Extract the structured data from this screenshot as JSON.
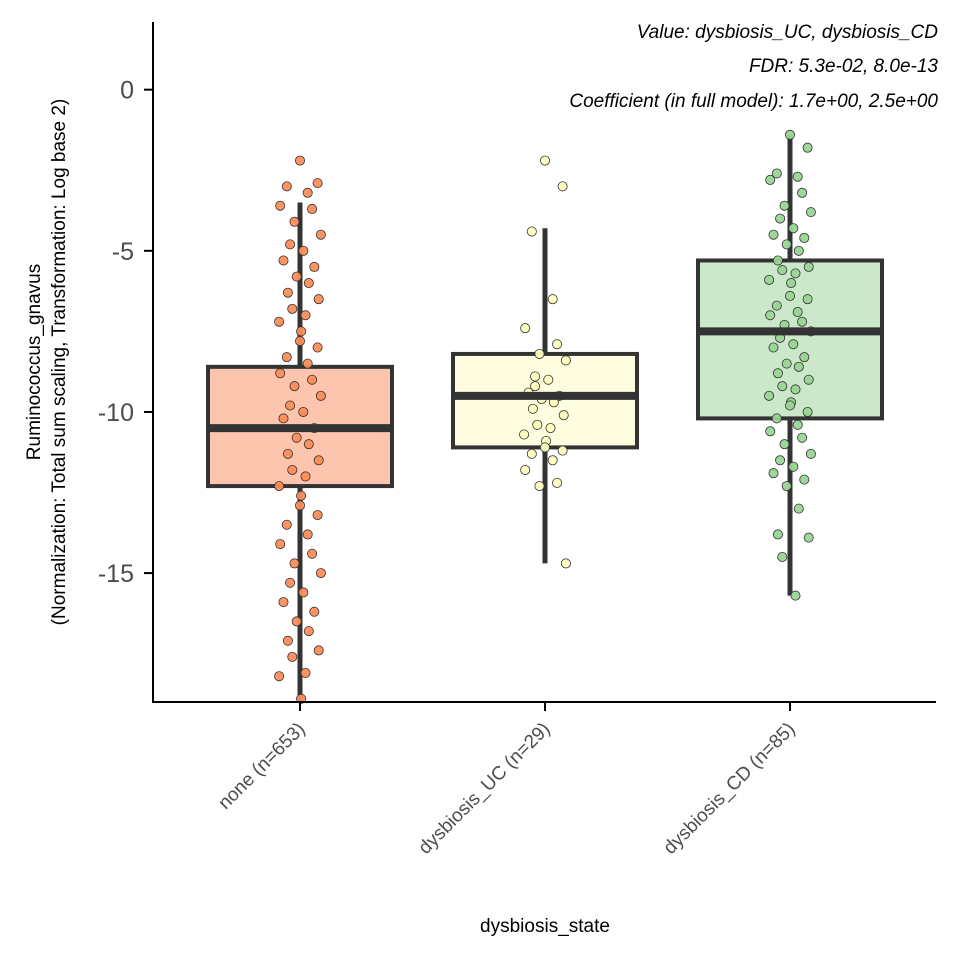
{
  "chart_data": {
    "type": "box",
    "xlabel": "dysbiosis_state",
    "ylabel_line1": "Ruminococcus_gnavus",
    "ylabel_line2": "(Normalization: Total sum scaling, Transformation: Log base 2)",
    "ylim": [
      -19.0,
      2.1
    ],
    "y_ticks": [
      0,
      -5,
      -10,
      -15
    ],
    "y_tick_labels": [
      "0",
      "-5",
      "-10",
      "-15"
    ],
    "grid": false,
    "annotations": [
      "Value: dysbiosis_UC, dysbiosis_CD",
      "FDR: 5.3e-02, 8.0e-13",
      "Coefficient (in full model): 1.7e+00, 2.5e+00"
    ],
    "categories": [
      "none (n=653)",
      "dysbiosis_UC (n=29)",
      "dysbiosis_CD (n=85)"
    ],
    "groups": [
      {
        "n": 653,
        "color": "#fc8d59",
        "box_fill": "#fdc5ad",
        "box": {
          "whisker_low": -19.0,
          "q1": -12.3,
          "median": -10.5,
          "q3": -8.6,
          "whisker_high": -3.5
        },
        "points": [
          -2.2,
          -2.9,
          -3.0,
          -3.2,
          -3.6,
          -3.7,
          -4.1,
          -4.5,
          -4.8,
          -5.0,
          -5.3,
          -5.5,
          -5.8,
          -6.0,
          -6.3,
          -6.5,
          -6.8,
          -7.0,
          -7.2,
          -7.5,
          -7.8,
          -8.0,
          -8.3,
          -8.5,
          -8.8,
          -9.0,
          -9.2,
          -9.5,
          -9.8,
          -10.0,
          -10.2,
          -10.5,
          -10.8,
          -11.0,
          -11.3,
          -11.5,
          -11.8,
          -12.0,
          -12.3,
          -12.6,
          -12.9,
          -13.2,
          -13.5,
          -13.8,
          -14.1,
          -14.4,
          -14.7,
          -15.0,
          -15.3,
          -15.6,
          -15.9,
          -16.2,
          -16.5,
          -16.8,
          -17.1,
          -17.4,
          -17.6,
          -18.1,
          -18.2,
          -18.9
        ]
      },
      {
        "n": 29,
        "color": "#ffffbf",
        "box_fill": "#fefde0",
        "box": {
          "whisker_low": -14.7,
          "q1": -11.1,
          "median": -9.5,
          "q3": -8.2,
          "whisker_high": -4.3
        },
        "points": [
          -2.2,
          -3.0,
          -4.4,
          -6.5,
          -7.4,
          -7.9,
          -8.2,
          -8.4,
          -8.9,
          -9.0,
          -9.4,
          -9.5,
          -9.6,
          -9.7,
          -9.9,
          -10.1,
          -10.4,
          -10.5,
          -10.7,
          -10.9,
          -11.1,
          -11.2,
          -11.3,
          -11.5,
          -11.8,
          -12.2,
          -12.3,
          -14.7,
          -9.2
        ]
      },
      {
        "n": 85,
        "color": "#99d594",
        "box_fill": "#cbe9ca",
        "box": {
          "whisker_low": -15.7,
          "q1": -10.2,
          "median": -7.5,
          "q3": -5.3,
          "whisker_high": -1.4
        },
        "points": [
          -1.4,
          -1.8,
          -2.6,
          -2.7,
          -2.8,
          -3.2,
          -3.6,
          -3.8,
          -4.0,
          -4.3,
          -4.5,
          -4.6,
          -4.8,
          -5.0,
          -5.3,
          -5.5,
          -5.6,
          -5.7,
          -5.9,
          -6.0,
          -6.4,
          -6.5,
          -6.7,
          -6.9,
          -7.0,
          -7.2,
          -7.3,
          -7.5,
          -7.7,
          -7.9,
          -8.0,
          -8.3,
          -8.5,
          -8.6,
          -8.8,
          -9.0,
          -9.2,
          -9.3,
          -9.5,
          -9.7,
          -9.8,
          -10.0,
          -10.2,
          -10.4,
          -10.6,
          -10.8,
          -11.0,
          -11.3,
          -11.5,
          -11.7,
          -11.9,
          -12.1,
          -12.3,
          -13.0,
          -13.8,
          -13.9,
          -14.5,
          -15.7
        ]
      }
    ]
  }
}
